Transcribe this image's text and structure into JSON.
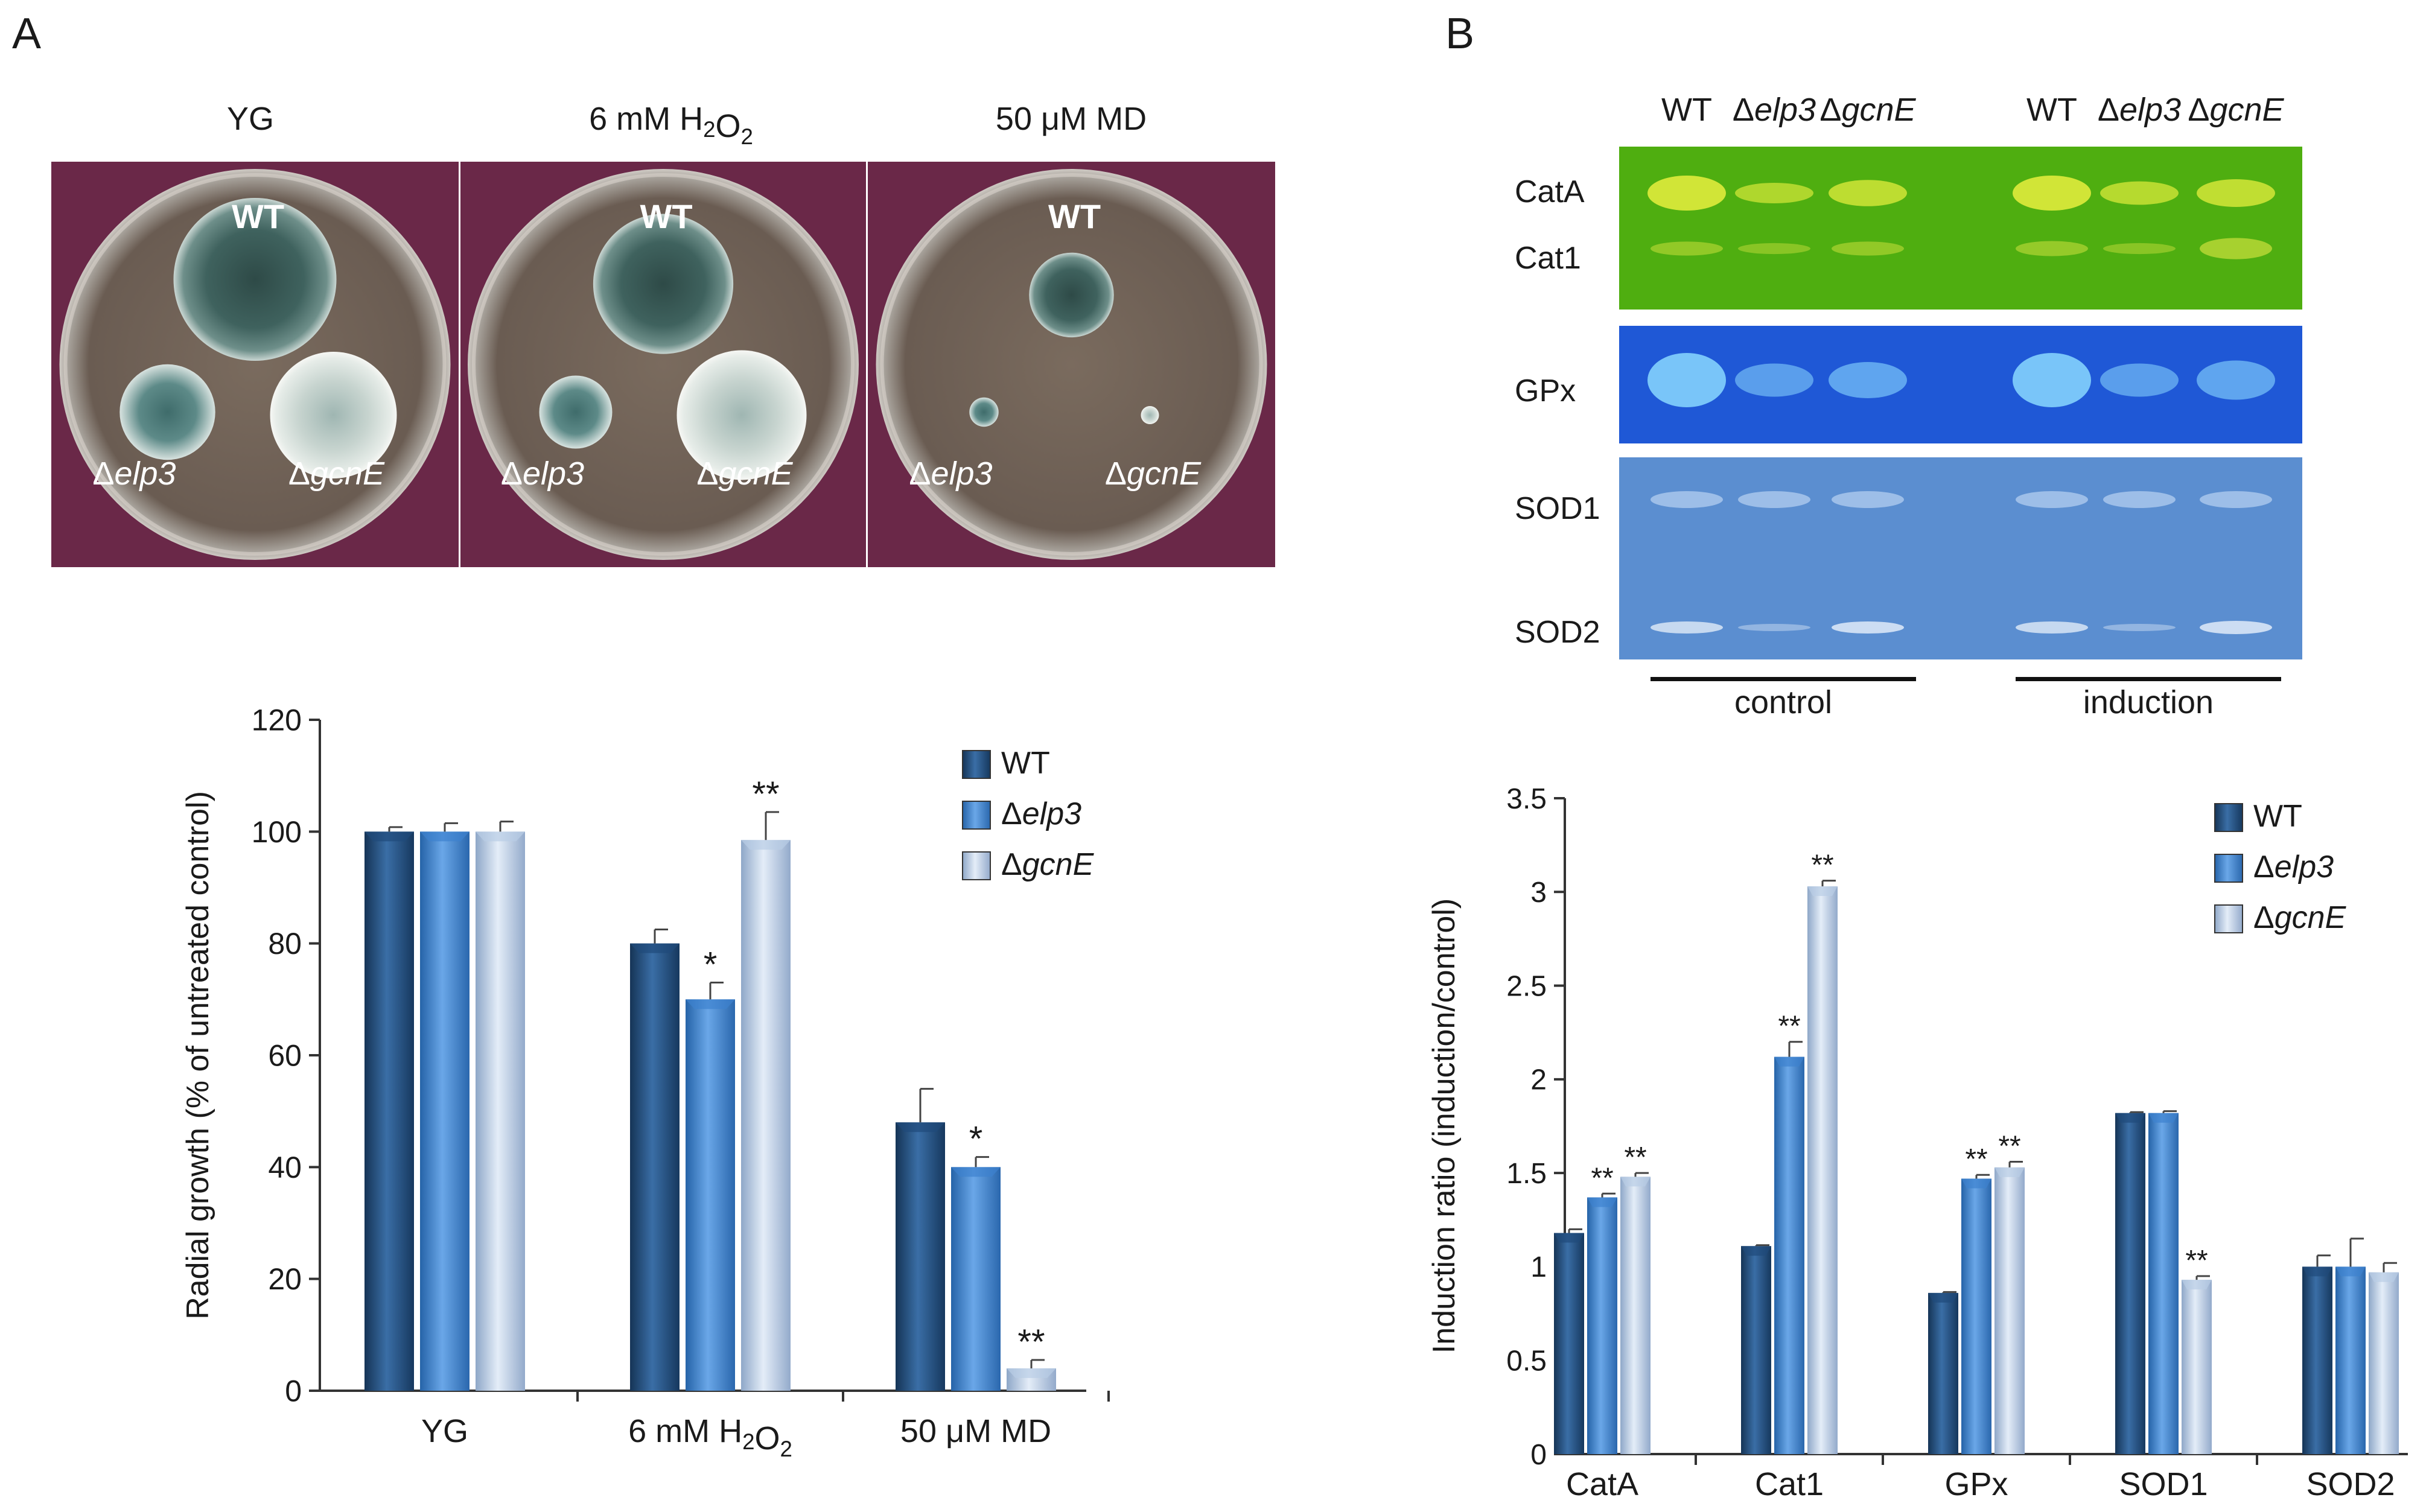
{
  "panels": {
    "a_letter": "A",
    "b_letter": "B"
  },
  "plates": {
    "conditions": [
      {
        "base": "YG",
        "sub": "",
        "tail": ""
      },
      {
        "base": "6 mM H",
        "sub": "2",
        "mid": "O",
        "sub2": "2"
      },
      {
        "base": "50 μM MD",
        "sub": "",
        "tail": ""
      }
    ],
    "strain_labels": {
      "wt": "WT",
      "elp3": "Δelp3",
      "gcne": "ΔgcnE"
    },
    "colony_level": [
      {
        "wt": 1.0,
        "elp3": 0.72,
        "gcne": 0.84
      },
      {
        "wt": 0.86,
        "elp3": 0.55,
        "gcne": 0.86
      },
      {
        "wt": 0.52,
        "elp3": 0.22,
        "gcne": 0.12
      }
    ]
  },
  "gels": {
    "lane_header": [
      "WT",
      "Δelp3",
      "ΔgcnE",
      "WT",
      "Δelp3",
      "ΔgcnE"
    ],
    "band_labels": {
      "cata": "CatA",
      "cat1": "Cat1",
      "gpx": "GPx",
      "sod1": "SOD1",
      "sod2": "SOD2"
    },
    "groups": [
      "control",
      "induction"
    ],
    "colors": {
      "catalase_bg": "#4fae10",
      "gpx_bg": "#1f58d6",
      "sod_bg": "#5b8ed0"
    }
  },
  "chart_data": [
    {
      "type": "bar",
      "title": "",
      "xlabel": "",
      "ylabel": "Radial growth (% of untreated control)",
      "ylim": [
        0,
        120
      ],
      "yticks": [
        0,
        20,
        40,
        60,
        80,
        100,
        120
      ],
      "categories": [
        {
          "base": "YG",
          "sub": "",
          "mid": "",
          "sub2": ""
        },
        {
          "base": "6 mM H",
          "sub": "2",
          "mid": "O",
          "sub2": "2"
        },
        {
          "base": "50 μM MD",
          "sub": "",
          "mid": "",
          "sub2": ""
        }
      ],
      "series": [
        {
          "name": "WT",
          "values": [
            100,
            80,
            48
          ],
          "errors": [
            0.8,
            2.5,
            6.0
          ],
          "sig": [
            "",
            "",
            ""
          ]
        },
        {
          "name": "Δelp3",
          "values": [
            100,
            70,
            40
          ],
          "errors": [
            1.5,
            3.0,
            1.8
          ],
          "sig": [
            "",
            "*",
            "*"
          ]
        },
        {
          "name": "ΔgcnE",
          "values": [
            100,
            98.5,
            4
          ],
          "errors": [
            1.8,
            5.0,
            1.5
          ],
          "sig": [
            "",
            "**",
            "**"
          ]
        }
      ],
      "legend": "top-right"
    },
    {
      "type": "bar",
      "title": "",
      "xlabel": "",
      "ylabel": "Induction ratio (induction/control)",
      "ylim": [
        0,
        3.5
      ],
      "yticks": [
        0,
        0.5,
        1,
        1.5,
        2,
        2.5,
        3,
        3.5
      ],
      "categories": [
        "CatA",
        "Cat1",
        "GPx",
        "SOD1",
        "SOD2"
      ],
      "series": [
        {
          "name": "WT",
          "values": [
            1.18,
            1.11,
            0.86,
            1.82,
            1.0
          ],
          "errors": [
            0.02,
            0.005,
            0.005,
            0.005,
            0.06
          ],
          "sig": [
            "",
            "",
            "",
            "",
            ""
          ]
        },
        {
          "name": "Δelp3",
          "values": [
            1.37,
            2.12,
            1.47,
            1.82,
            1.0
          ],
          "errors": [
            0.02,
            0.08,
            0.02,
            0.01,
            0.15
          ],
          "sig": [
            "**",
            "**",
            "**",
            "",
            ""
          ]
        },
        {
          "name": "ΔgcnE",
          "values": [
            1.48,
            3.03,
            1.53,
            0.93,
            0.97
          ],
          "errors": [
            0.02,
            0.03,
            0.03,
            0.02,
            0.05
          ],
          "sig": [
            "**",
            "**",
            "**",
            "**",
            ""
          ]
        }
      ],
      "legend": "top-right"
    }
  ],
  "legend_colors": [
    "#1f4a7a",
    "#3d82cf",
    "#b9cde6"
  ]
}
